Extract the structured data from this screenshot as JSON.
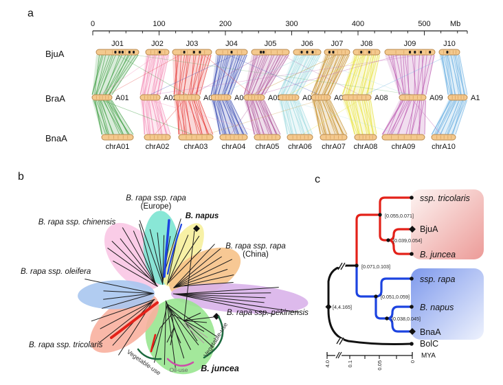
{
  "figure": {
    "background": "#ffffff"
  },
  "panel_a": {
    "label": "a",
    "scale": {
      "ticks": [
        "0",
        "100",
        "200",
        "300",
        "400",
        "500"
      ],
      "unit": "Mb"
    },
    "rows": [
      {
        "name": "BjuA",
        "chromosomes": [
          "J01",
          "J02",
          "J03",
          "J04",
          "J05",
          "J06",
          "J07",
          "J08",
          "J09",
          "J10"
        ]
      },
      {
        "name": "BraA",
        "chromosomes": [
          "A01",
          "A02",
          "A03",
          "A04",
          "A05",
          "A06",
          "A07",
          "A08",
          "A09",
          "A1"
        ]
      },
      {
        "name": "BnaA",
        "chromosomes": [
          "chrA01",
          "chrA02",
          "chrA03",
          "chrA04",
          "chrA05",
          "chrA06",
          "chrA07",
          "chrA08",
          "chrA09",
          "chrA10"
        ]
      }
    ],
    "pair_colors": [
      "#43a047",
      "#f48fb8",
      "#e53935",
      "#3f51b5",
      "#b0589d",
      "#a5dde2",
      "#c8922f",
      "#e8e23c",
      "#bb58b0",
      "#70b2e3"
    ],
    "bar_fill": "#f4c98e",
    "bar_border": "#b9894e"
  },
  "panel_b": {
    "label": "b",
    "groups": [
      {
        "name": "B. rapa ssp. chinensis",
        "color": "#f9c7e4"
      },
      {
        "name": "B. rapa ssp. rapa",
        "sub": "(Europe)",
        "color": "#7ce4d2"
      },
      {
        "name": "B. napus",
        "color": "#f6ef9c"
      },
      {
        "name": "B. rapa ssp. rapa",
        "sub": "(China)",
        "color": "#f6c288"
      },
      {
        "name": "B. rapa ssp. pekinensis",
        "color": "#d9b3ea"
      },
      {
        "name": "B. juncea",
        "color": "#99e690"
      },
      {
        "name": "B. rapa ssp. tricolaris",
        "color": "#f8b09e"
      },
      {
        "name": "B. rapa ssp. oleifera",
        "color": "#a9c6ef"
      }
    ],
    "annotations": {
      "vegetable_left": "Vegetable-use",
      "oil": "Oil-use",
      "vegetable_right": "Vegetable-use"
    },
    "highlight_colors": {
      "red": "#e32119",
      "blue": "#1c43e0",
      "arc_green": "#1d6b40",
      "arc_magenta": "#cc4da8"
    }
  },
  "panel_c": {
    "label": "c",
    "tips": [
      {
        "label": "ssp. tricolaris",
        "marker": "circle"
      },
      {
        "label": "BjuA",
        "marker": "diamond"
      },
      {
        "label": "B. juncea",
        "marker": "circle"
      },
      {
        "label": "ssp. rapa",
        "marker": "circle"
      },
      {
        "label": "B. napus",
        "marker": "circle"
      },
      {
        "label": "BnaA",
        "marker": "diamond"
      },
      {
        "label": "BolC",
        "marker": "circle"
      }
    ],
    "node_labels": [
      "[0.055,0.071]",
      "[0.039,0.054]",
      "[0.071,0.103]",
      "[0.051,0.059]",
      "[0.038,0.045]",
      "[4,4.165]"
    ],
    "axis": {
      "ticks": [
        "4.0",
        "0.1",
        "0.05",
        "0"
      ],
      "unit": "MYA"
    },
    "clade_colors": {
      "red": "#e32119",
      "blue": "#1c43e0"
    },
    "box_colors": {
      "red_box": [
        "#fdf4f2",
        "#ec9b98"
      ],
      "blue_box": [
        "#7e99ec",
        "#eef2fd"
      ]
    }
  }
}
